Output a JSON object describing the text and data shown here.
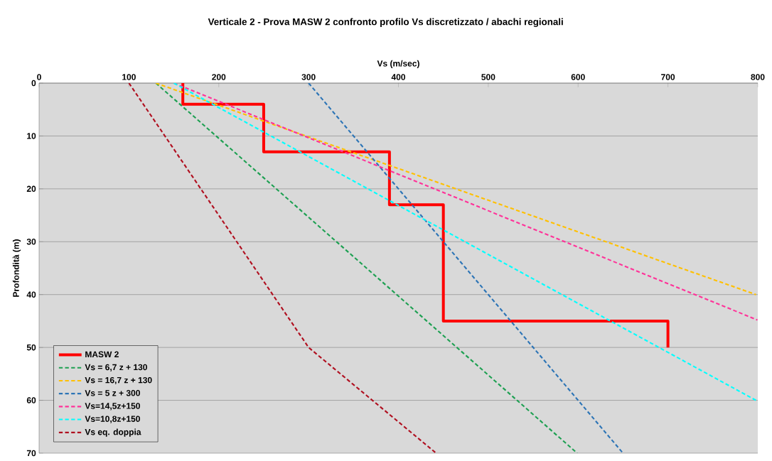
{
  "chart_data": {
    "type": "line",
    "title": "Verticale 2 - Prova MASW 2 confronto profilo Vs discretizzato / abachi regionali",
    "xlabel": "Vs (m/sec)",
    "ylabel": "Profondità (m)",
    "xlim": [
      0,
      800
    ],
    "xticks": [
      0,
      100,
      200,
      300,
      400,
      500,
      600,
      700,
      800
    ],
    "ylim": [
      70,
      0
    ],
    "yticks": [
      0,
      10,
      20,
      30,
      40,
      50,
      60,
      70
    ],
    "grid": "y",
    "legend": "bottom left",
    "marker": "none",
    "series": [
      {
        "name": "MASW 2",
        "color": "#ff0000",
        "line_style": "solid",
        "x": [
          160,
          160,
          250,
          250,
          390,
          390,
          450,
          450,
          700,
          700
        ],
        "values": [
          0,
          4,
          4,
          13,
          13,
          23,
          23,
          45,
          45,
          50
        ]
      },
      {
        "name": "Vs = 6,7 z + 130",
        "color": "#1ea052",
        "line_style": "dashed",
        "x": [
          130,
          599
        ],
        "values": [
          0,
          70
        ]
      },
      {
        "name": "Vs = 16,7 z + 130",
        "color": "#ffc000",
        "line_style": "dashed",
        "x": [
          130,
          798
        ],
        "values": [
          0,
          40
        ]
      },
      {
        "name": "Vs = 5 z + 300",
        "color": "#2e75b6",
        "line_style": "dashed",
        "x": [
          300,
          650
        ],
        "values": [
          0,
          70
        ]
      },
      {
        "name": "Vs=14,5z+150",
        "color": "#ff3399",
        "line_style": "dashed",
        "x": [
          150,
          799.6
        ],
        "values": [
          0,
          44.8
        ]
      },
      {
        "name": "Vs=10,8z+150",
        "color": "#00ffff",
        "line_style": "dashed",
        "x": [
          150,
          798
        ],
        "values": [
          0,
          60
        ]
      },
      {
        "name": "Vs eq. doppia",
        "color": "#b01020",
        "line_style": "dashed",
        "x": [
          100,
          300,
          442
        ],
        "values": [
          0,
          50,
          70
        ]
      }
    ]
  }
}
